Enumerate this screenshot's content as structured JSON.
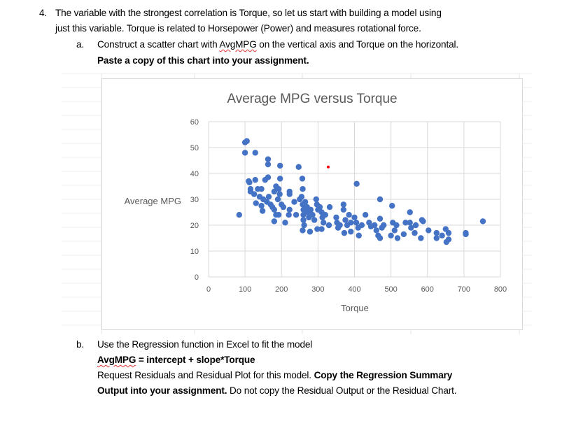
{
  "q4": {
    "number": "4.",
    "line1": "The variable with the strongest correlation is Torque, so let us start with building a model using",
    "line2": "just this variable.  Torque is related to Horsepower (Power) and measures rotational force."
  },
  "part_a": {
    "letter": "a.",
    "text_pre": "Construct a scatter chart with ",
    "text_var": "AvgMPG",
    "text_post": " on the vertical axis and Torque on the horizontal.",
    "bold": "Paste a copy of this chart into your assignment."
  },
  "part_b": {
    "letter": "b.",
    "line1": "Use the Regression function in Excel to fit the model",
    "model_var": "AvgMPG",
    "model_rest": " = intercept + slope*Torque",
    "line3": "Request Residuals and Residual Plot for this model.  ",
    "line3_bold": "Copy the Regression Summary",
    "line4_bold": "Output into your assignment.",
    "line4": "  Do not copy the Residual Output or the Residual Chart."
  },
  "chart_data": {
    "type": "scatter",
    "title": "Average MPG versus Torque",
    "xlabel": "Torque",
    "ylabel": "Average MPG",
    "xlim": [
      0,
      800
    ],
    "ylim": [
      0,
      60
    ],
    "xticks": [
      "0",
      "100",
      "200",
      "300",
      "400",
      "500",
      "600",
      "700",
      "800"
    ],
    "yticks": [
      "0",
      "10",
      "20",
      "30",
      "40",
      "50",
      "60"
    ],
    "grid": true,
    "colors": {
      "points": "#4472c4",
      "highlight": "#ff0000"
    },
    "highlight_point": [
      328,
      42.5
    ],
    "points": [
      [
        84,
        24
      ],
      [
        100,
        52
      ],
      [
        105,
        52.5
      ],
      [
        100,
        48
      ],
      [
        128,
        48
      ],
      [
        163,
        45.5
      ],
      [
        163,
        43.5
      ],
      [
        196,
        43
      ],
      [
        247,
        42.5
      ],
      [
        110,
        37
      ],
      [
        112,
        36.5
      ],
      [
        128,
        37.5
      ],
      [
        155,
        37.5
      ],
      [
        163,
        38.5
      ],
      [
        196,
        38
      ],
      [
        257,
        38
      ],
      [
        258,
        34
      ],
      [
        115,
        34
      ],
      [
        115,
        33
      ],
      [
        135,
        34
      ],
      [
        145,
        34
      ],
      [
        125,
        32
      ],
      [
        140,
        31
      ],
      [
        150,
        30
      ],
      [
        130,
        28.5
      ],
      [
        145,
        27.5
      ],
      [
        148,
        25.5
      ],
      [
        160,
        29
      ],
      [
        165,
        31
      ],
      [
        170,
        28
      ],
      [
        175,
        27
      ],
      [
        180,
        26
      ],
      [
        185,
        24
      ],
      [
        190,
        30
      ],
      [
        180,
        33
      ],
      [
        185,
        35
      ],
      [
        192,
        34
      ],
      [
        195,
        32
      ],
      [
        180,
        21.5
      ],
      [
        192,
        24
      ],
      [
        200,
        28
      ],
      [
        205,
        27
      ],
      [
        210,
        21
      ],
      [
        220,
        24
      ],
      [
        222,
        26
      ],
      [
        222,
        33
      ],
      [
        222,
        32
      ],
      [
        235,
        29
      ],
      [
        240,
        24
      ],
      [
        250,
        30
      ],
      [
        255,
        31
      ],
      [
        258,
        28
      ],
      [
        260,
        26
      ],
      [
        260,
        24
      ],
      [
        260,
        22
      ],
      [
        262,
        20
      ],
      [
        258,
        18
      ],
      [
        265,
        29
      ],
      [
        270,
        27
      ],
      [
        272,
        25
      ],
      [
        275,
        23
      ],
      [
        278,
        17.5
      ],
      [
        280,
        26
      ],
      [
        285,
        24
      ],
      [
        290,
        22
      ],
      [
        295,
        30
      ],
      [
        297,
        28
      ],
      [
        300,
        26
      ],
      [
        298,
        18.5
      ],
      [
        305,
        27
      ],
      [
        310,
        25
      ],
      [
        312,
        23
      ],
      [
        310,
        18.5
      ],
      [
        315,
        21
      ],
      [
        320,
        24
      ],
      [
        330,
        20
      ],
      [
        332,
        27
      ],
      [
        350,
        23
      ],
      [
        352,
        21
      ],
      [
        355,
        19
      ],
      [
        360,
        20
      ],
      [
        370,
        28
      ],
      [
        370,
        26
      ],
      [
        372,
        17
      ],
      [
        375,
        22
      ],
      [
        380,
        20
      ],
      [
        385,
        24
      ],
      [
        390,
        21
      ],
      [
        390,
        17.5
      ],
      [
        400,
        23
      ],
      [
        405,
        21
      ],
      [
        406,
        36
      ],
      [
        410,
        19
      ],
      [
        412,
        16
      ],
      [
        420,
        20
      ],
      [
        430,
        24
      ],
      [
        440,
        21
      ],
      [
        445,
        19.5
      ],
      [
        455,
        20
      ],
      [
        460,
        18
      ],
      [
        465,
        16
      ],
      [
        470,
        30
      ],
      [
        470,
        22.5
      ],
      [
        470,
        15
      ],
      [
        475,
        19
      ],
      [
        480,
        20
      ],
      [
        500,
        16
      ],
      [
        503,
        27.5
      ],
      [
        505,
        21
      ],
      [
        510,
        18
      ],
      [
        515,
        20
      ],
      [
        518,
        15
      ],
      [
        535,
        16.5
      ],
      [
        540,
        21
      ],
      [
        552,
        25
      ],
      [
        552,
        21
      ],
      [
        555,
        19
      ],
      [
        565,
        17
      ],
      [
        568,
        20
      ],
      [
        582,
        15
      ],
      [
        585,
        22
      ],
      [
        588,
        21.5
      ],
      [
        603,
        18
      ],
      [
        625,
        17
      ],
      [
        625,
        15
      ],
      [
        640,
        16
      ],
      [
        650,
        18.5
      ],
      [
        652,
        13.5
      ],
      [
        658,
        17
      ],
      [
        658,
        14.5
      ],
      [
        705,
        17
      ],
      [
        705,
        16.5
      ],
      [
        752,
        21.5
      ]
    ]
  }
}
